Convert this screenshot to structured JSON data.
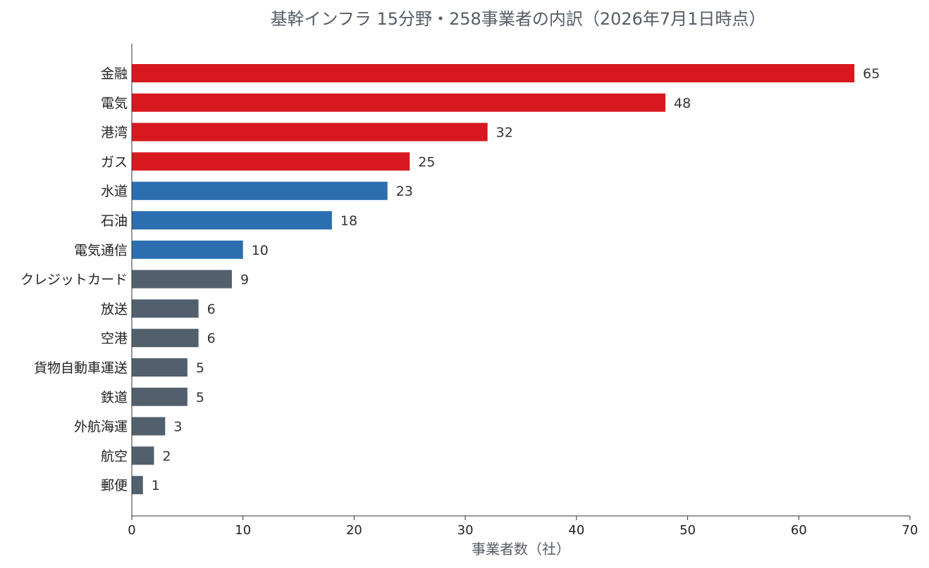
{
  "chart_data": {
    "type": "bar",
    "orientation": "horizontal",
    "title": "基幹インフラ 15分野・258事業者の内訳（2026年7月1日時点）",
    "xlabel": "事業者数（社）",
    "ylabel": "",
    "xlim": [
      0,
      70
    ],
    "xticks": [
      0,
      10,
      20,
      30,
      40,
      50,
      60,
      70
    ],
    "grid": false,
    "categories": [
      "金融",
      "電気",
      "港湾",
      "ガス",
      "水道",
      "石油",
      "電気通信",
      "クレジットカード",
      "放送",
      "空港",
      "貨物自動車運送",
      "鉄道",
      "外航海運",
      "航空",
      "郵便"
    ],
    "values": [
      65,
      48,
      32,
      25,
      23,
      18,
      10,
      9,
      6,
      6,
      5,
      5,
      3,
      2,
      1
    ],
    "value_labels": [
      "65",
      "48",
      "32",
      "25",
      "23",
      "18",
      "10",
      "9",
      "6",
      "6",
      "5",
      "5",
      "3",
      "2",
      "1"
    ],
    "bar_colors": [
      "#d7191f",
      "#d7191f",
      "#d7191f",
      "#d7191f",
      "#2b6fb0",
      "#2b6fb0",
      "#2b6fb0",
      "#52606e",
      "#52606e",
      "#52606e",
      "#52606e",
      "#52606e",
      "#52606e",
      "#52606e",
      "#52606e"
    ]
  }
}
